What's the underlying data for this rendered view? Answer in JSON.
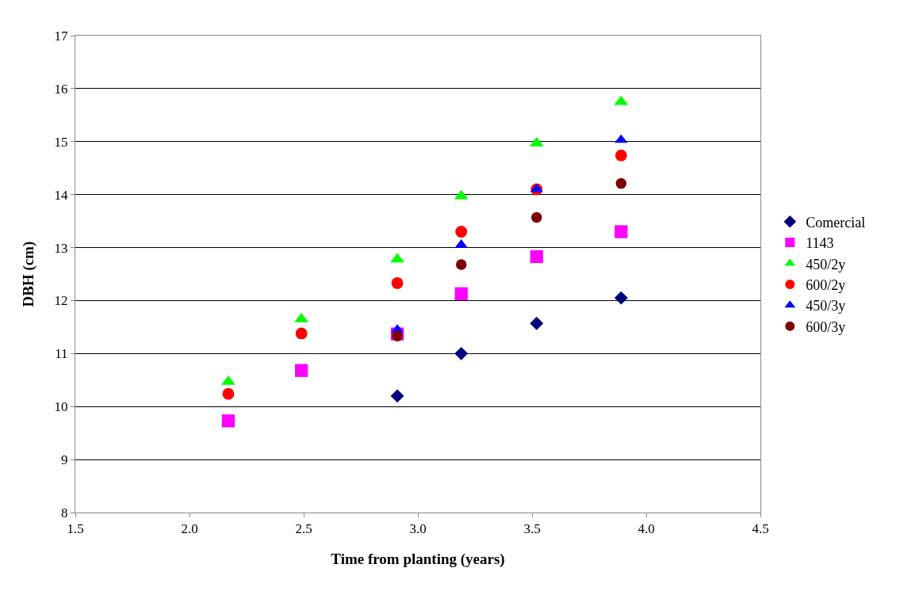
{
  "chart_data": {
    "type": "scatter",
    "xlabel": "Time from planting (years)",
    "ylabel": "DBH (cm)",
    "x": [
      2.17,
      2.49,
      2.91,
      3.19,
      3.52,
      3.89
    ],
    "series": [
      {
        "name": "Comercial",
        "color": "#000080",
        "marker": "diamond",
        "values": [
          null,
          null,
          10.2,
          11.0,
          11.57,
          12.05
        ]
      },
      {
        "name": "1143",
        "color": "#ff00ff",
        "marker": "square",
        "values": [
          9.73,
          10.68,
          11.37,
          12.13,
          12.83,
          13.3
        ]
      },
      {
        "name": "450/2y",
        "color": "#00ff00",
        "marker": "triangle",
        "values": [
          10.47,
          11.65,
          12.78,
          13.97,
          14.97,
          15.75
        ]
      },
      {
        "name": "600/2y",
        "color": "#ff0000",
        "marker": "circle",
        "values": [
          10.24,
          11.38,
          12.33,
          13.3,
          14.1,
          14.74
        ]
      },
      {
        "name": "450/3y",
        "color": "#0000ff",
        "marker": "triangle",
        "values": [
          null,
          null,
          11.45,
          13.05,
          14.1,
          15.03
        ]
      },
      {
        "name": "600/3y",
        "color": "#800000",
        "marker": "circle",
        "values": [
          null,
          null,
          11.33,
          12.68,
          13.57,
          14.21
        ]
      }
    ],
    "xlim": [
      1.5,
      4.5
    ],
    "xticks": [
      {
        "value": 1.5,
        "label": "1.5"
      },
      {
        "value": 2,
        "label": "2.0"
      },
      {
        "value": 2.5,
        "label": "2.5"
      },
      {
        "value": 3,
        "label": "3.0"
      },
      {
        "value": 3.5,
        "label": "3.5"
      },
      {
        "value": 4,
        "label": "4.0"
      },
      {
        "value": 4.5,
        "label": "4.5"
      }
    ],
    "ylim": [
      8,
      17
    ],
    "yticks": [
      8,
      9,
      10,
      11,
      12,
      13,
      14,
      15,
      16,
      17
    ],
    "grid": "y",
    "legend": "right"
  }
}
